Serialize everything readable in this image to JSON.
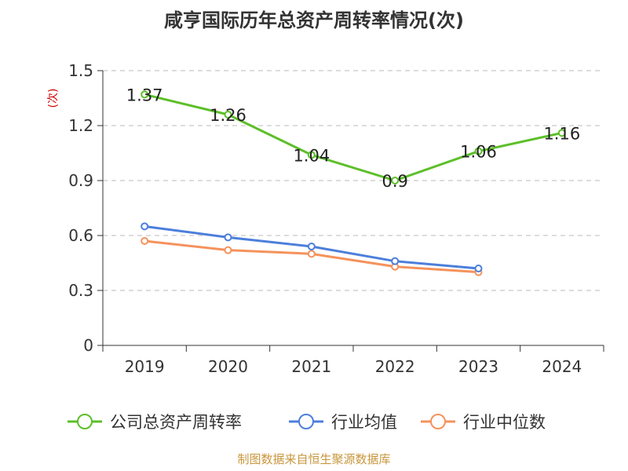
{
  "chart_data": {
    "type": "line",
    "title": "咸亨国际历年总资产周转率情况(次)",
    "ylabel": "(次)",
    "xlabel": "",
    "categories": [
      "2019",
      "2020",
      "2021",
      "2022",
      "2023",
      "2024"
    ],
    "ylim": [
      0,
      1.5
    ],
    "yticks": [
      "0",
      "0.3",
      "0.6",
      "0.9",
      "1.2",
      "1.5"
    ],
    "grid": true,
    "legend_position": "bottom",
    "series": [
      {
        "name": "公司总资产周转率",
        "color": "#5DBF2A",
        "values": [
          1.37,
          1.26,
          1.04,
          0.9,
          1.06,
          1.16
        ],
        "labels": [
          "1.37",
          "1.26",
          "1.04",
          "0.9",
          "1.06",
          "1.16"
        ],
        "show_labels": true
      },
      {
        "name": "行业均值",
        "color": "#4C7FDB",
        "values": [
          0.65,
          0.59,
          0.54,
          0.46,
          0.42,
          null
        ],
        "show_labels": false
      },
      {
        "name": "行业中位数",
        "color": "#F5925C",
        "values": [
          0.57,
          0.52,
          0.5,
          0.43,
          0.4,
          null
        ],
        "show_labels": false
      }
    ],
    "source": "制图数据来自恒生聚源数据库"
  },
  "colors": {
    "title": "#333333",
    "ylabel": "#cc0000",
    "axis": "#333333",
    "grid": "#bbbbbb",
    "source": "#C8963C"
  }
}
